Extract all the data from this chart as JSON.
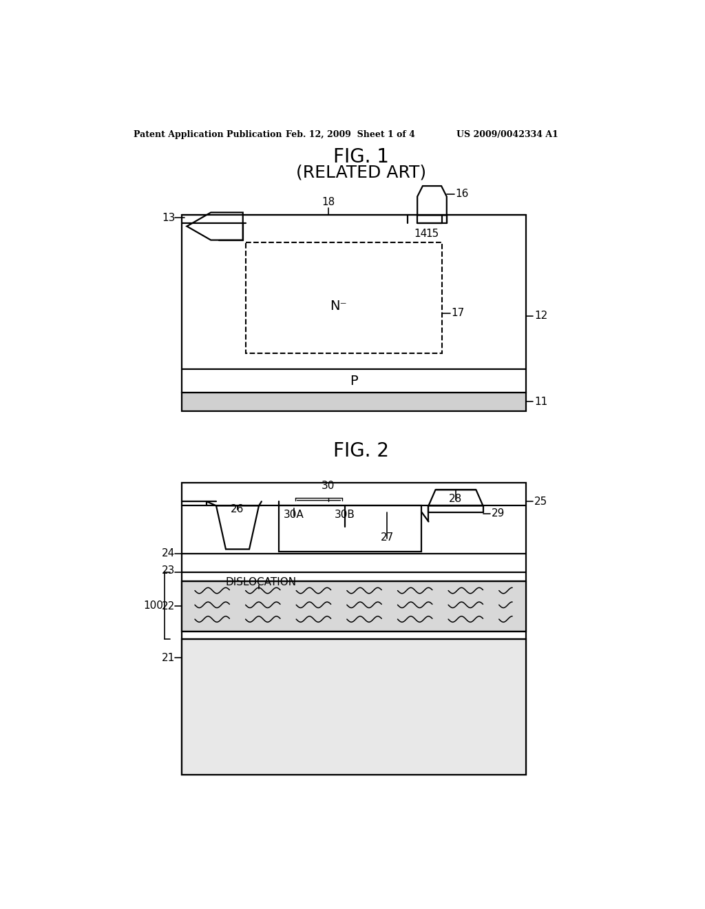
{
  "bg_color": "#ffffff",
  "header_left": "Patent Application Publication",
  "header_center": "Feb. 12, 2009  Sheet 1 of 4",
  "header_right": "US 2009/0042334 A1",
  "fig1_title": "FIG. 1",
  "fig1_subtitle": "(RELATED ART)",
  "fig2_title": "FIG. 2",
  "lw": 1.6
}
